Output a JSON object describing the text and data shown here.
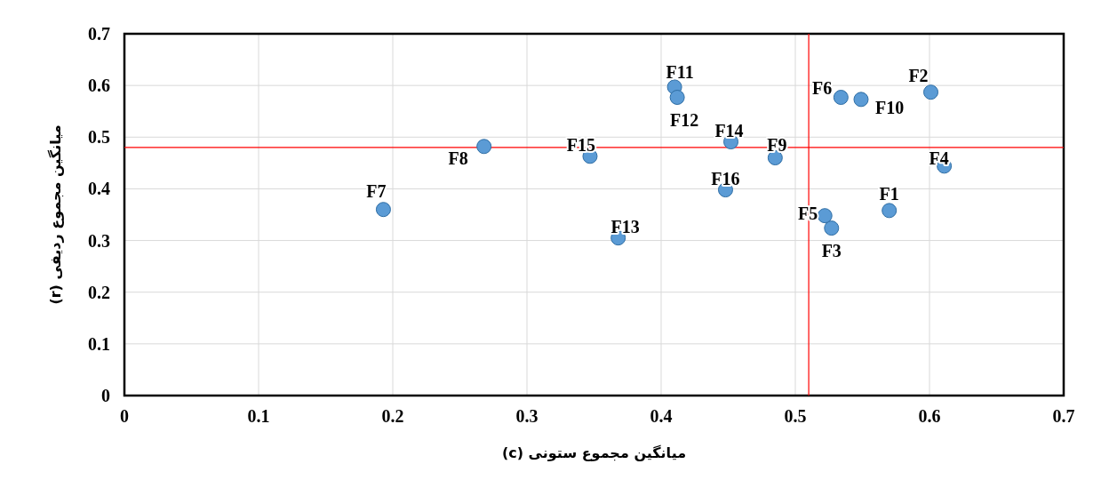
{
  "chart_data": {
    "type": "scatter",
    "xlabel": "میانگین مجموع ستونی (c)",
    "ylabel": "میانگین مجموع ردیفی (r)",
    "x": [
      0.57,
      0.601,
      0.527,
      0.611,
      0.522,
      0.534,
      0.193,
      0.268,
      0.485,
      0.549,
      0.41,
      0.412,
      0.368,
      0.452,
      0.347,
      0.448
    ],
    "series": [
      {
        "color": "#5b9bd5",
        "values": [
          0.358,
          0.587,
          0.324,
          0.444,
          0.348,
          0.577,
          0.36,
          0.482,
          0.46,
          0.573,
          0.597,
          0.577,
          0.305,
          0.491,
          0.463,
          0.398
        ]
      }
    ],
    "annotations": [
      {
        "text": "F1",
        "x": 0.57,
        "y": 0.358
      },
      {
        "text": "F2",
        "x": 0.601,
        "y": 0.587
      },
      {
        "text": "F3",
        "x": 0.527,
        "y": 0.324
      },
      {
        "text": "F4",
        "x": 0.611,
        "y": 0.444
      },
      {
        "text": "F5",
        "x": 0.522,
        "y": 0.348
      },
      {
        "text": "F6",
        "x": 0.534,
        "y": 0.577
      },
      {
        "text": "F7",
        "x": 0.193,
        "y": 0.36
      },
      {
        "text": "F8",
        "x": 0.268,
        "y": 0.482
      },
      {
        "text": "F9",
        "x": 0.485,
        "y": 0.46
      },
      {
        "text": "F10",
        "x": 0.549,
        "y": 0.573
      },
      {
        "text": "F11",
        "x": 0.41,
        "y": 0.597
      },
      {
        "text": "F12",
        "x": 0.412,
        "y": 0.577
      },
      {
        "text": "F13",
        "x": 0.368,
        "y": 0.305
      },
      {
        "text": "F14",
        "x": 0.452,
        "y": 0.491
      },
      {
        "text": "F15",
        "x": 0.347,
        "y": 0.463
      },
      {
        "text": "F16",
        "x": 0.448,
        "y": 0.398
      }
    ],
    "ref_lines": [
      {
        "axis": "y",
        "value": 0.48,
        "color": "#ff0000"
      },
      {
        "axis": "x",
        "value": 0.51,
        "color": "#ff0000"
      }
    ],
    "xlim": [
      0,
      0.7
    ],
    "xticks": [
      0,
      0.1,
      0.2,
      0.3,
      0.4,
      0.5,
      0.6,
      0.7
    ],
    "ylim": [
      0,
      0.7
    ],
    "yticks": [
      0,
      0.1,
      0.2,
      0.3,
      0.4,
      0.5,
      0.6,
      0.7
    ],
    "grid": true,
    "marker": "circle"
  }
}
